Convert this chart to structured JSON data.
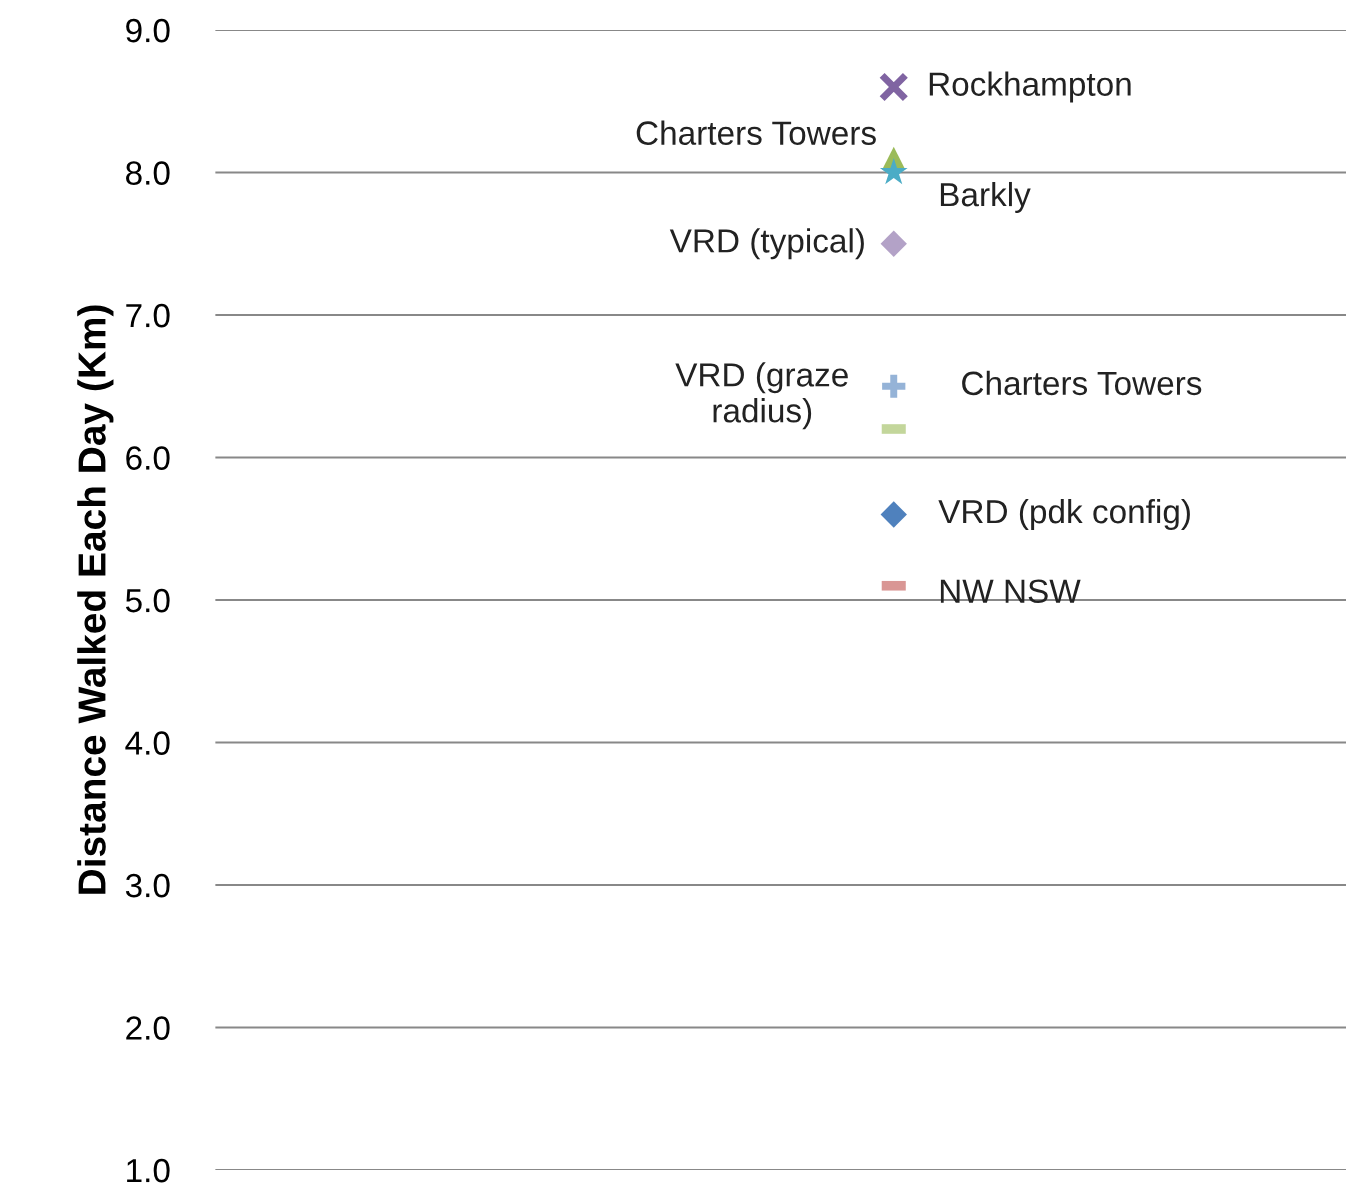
{
  "chart_data": {
    "type": "scatter",
    "ylabel": "Distance Walked Each Day (Km)",
    "categories": [
      null
    ],
    "ylim": [
      1.0,
      9.0
    ],
    "yticks": [
      {
        "value": 1,
        "label": "1.0"
      },
      {
        "value": 2,
        "label": "2.0"
      },
      {
        "value": 3,
        "label": "3.0"
      },
      {
        "value": 4,
        "label": "4.0"
      },
      {
        "value": 5,
        "label": "5.0"
      },
      {
        "value": 6,
        "label": "6.0"
      },
      {
        "value": 7,
        "label": "7.0"
      },
      {
        "value": 8,
        "label": "8.0"
      },
      {
        "value": 9,
        "label": "9.0"
      }
    ],
    "grid": "y",
    "series": [
      {
        "name": "Rockhampton",
        "color": "#8064a2",
        "marker": "cross",
        "values": [
          8.6
        ]
      },
      {
        "name": "Charters Towers",
        "color": "#9bbb59",
        "marker": "triangle",
        "values": [
          8.1
        ]
      },
      {
        "name": "Barkly",
        "color": "#4bacc6",
        "marker": "star",
        "values": [
          8.0
        ]
      },
      {
        "name": "VRD (typical)",
        "color": "#b3a2c7",
        "marker": "diamond",
        "values": [
          7.5
        ]
      },
      {
        "name": "Charters Towers",
        "color": "#95b3d7",
        "marker": "plus",
        "values": [
          6.5
        ]
      },
      {
        "name": "VRD (graze\nradius)",
        "color": "#c3d69b",
        "marker": "square",
        "values": [
          6.2
        ]
      },
      {
        "name": "VRD (pdk config)",
        "color": "#4f81bd",
        "marker": "diamond",
        "values": [
          5.6
        ]
      },
      {
        "name": "NW NSW",
        "color": "#d99694",
        "marker": "square",
        "values": [
          5.1
        ]
      }
    ]
  }
}
